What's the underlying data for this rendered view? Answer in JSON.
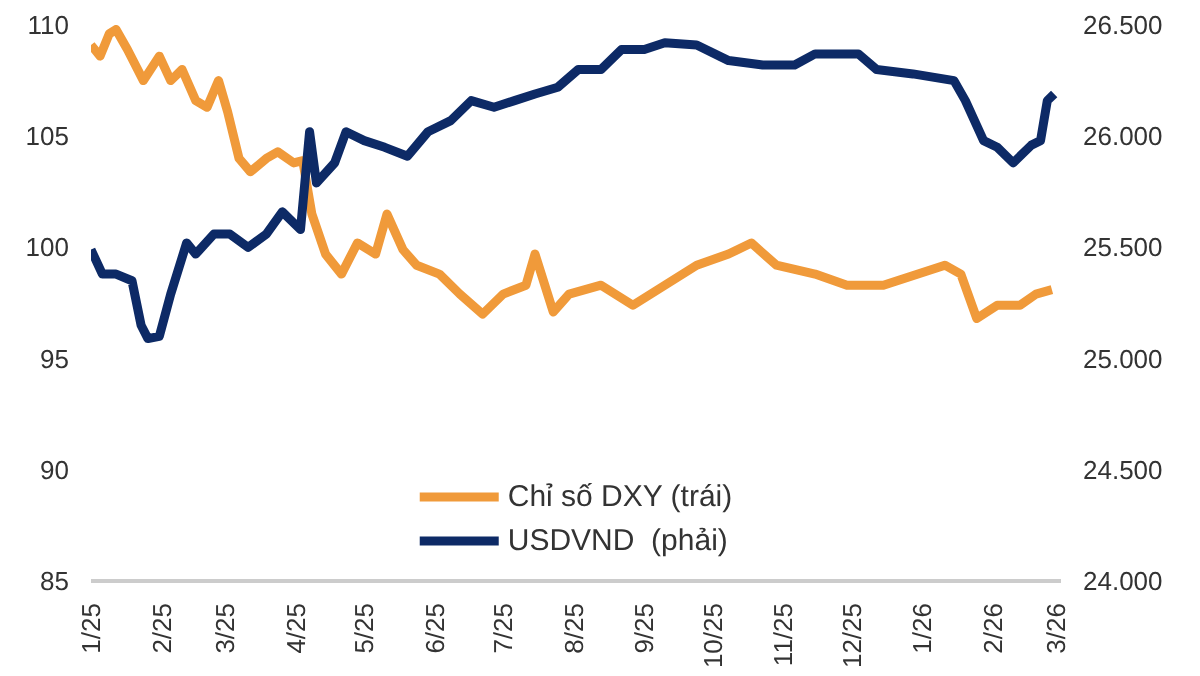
{
  "chart_data": {
    "type": "line",
    "xlim": [
      "2025-01-01",
      "2026-03-03"
    ],
    "xticks": [
      {
        "value": "2025-01-01",
        "label": "1/25"
      },
      {
        "value": "2025-02-01",
        "label": "2/25"
      },
      {
        "value": "2025-03-01",
        "label": "3/25"
      },
      {
        "value": "2025-04-01",
        "label": "4/25"
      },
      {
        "value": "2025-05-01",
        "label": "5/25"
      },
      {
        "value": "2025-06-01",
        "label": "6/25"
      },
      {
        "value": "2025-07-01",
        "label": "7/25"
      },
      {
        "value": "2025-08-01",
        "label": "8/25"
      },
      {
        "value": "2025-09-01",
        "label": "9/25"
      },
      {
        "value": "2025-10-01",
        "label": "10/25"
      },
      {
        "value": "2025-11-01",
        "label": "11/25"
      },
      {
        "value": "2025-12-01",
        "label": "12/25"
      },
      {
        "value": "2026-01-01",
        "label": "1/26"
      },
      {
        "value": "2026-02-01",
        "label": "2/26"
      },
      {
        "value": "2026-03-01",
        "label": "3/26"
      }
    ],
    "ylim": [
      85,
      110
    ],
    "yticks": [
      85,
      90,
      95,
      100,
      105,
      110
    ],
    "y2lim": [
      24000,
      26500
    ],
    "y2ticks": [
      {
        "value": 24000,
        "label": "24.000"
      },
      {
        "value": 24500,
        "label": "24.500"
      },
      {
        "value": 25000,
        "label": "25.000"
      },
      {
        "value": 25500,
        "label": "25.500"
      },
      {
        "value": 26000,
        "label": "26.000"
      },
      {
        "value": 26500,
        "label": "26.500"
      }
    ],
    "grid": false,
    "legend": "bottom",
    "marker": "none",
    "line_style": "solid",
    "series": [
      {
        "name": "Chỉ số DXY (trái)",
        "color": "#f09a3a",
        "x": [
          "2025-01-01",
          "2025-01-05",
          "2025-01-09",
          "2025-01-12",
          "2025-01-17",
          "2025-01-24",
          "2025-01-31",
          "2025-02-05",
          "2025-02-10",
          "2025-02-16",
          "2025-02-21",
          "2025-02-26",
          "2025-03-02",
          "2025-03-07",
          "2025-03-12",
          "2025-03-19",
          "2025-03-24",
          "2025-03-31",
          "2025-04-04",
          "2025-04-08",
          "2025-04-14",
          "2025-04-21",
          "2025-04-28",
          "2025-05-06",
          "2025-05-11",
          "2025-05-18",
          "2025-05-24",
          "2025-06-03",
          "2025-06-12",
          "2025-06-22",
          "2025-07-01",
          "2025-07-11",
          "2025-07-15",
          "2025-07-23",
          "2025-07-30",
          "2025-08-13",
          "2025-08-27",
          "2025-09-10",
          "2025-09-24",
          "2025-10-08",
          "2025-10-18",
          "2025-10-29",
          "2025-11-15",
          "2025-11-29",
          "2025-12-15",
          "2026-01-11",
          "2026-01-18",
          "2026-01-25",
          "2026-02-03",
          "2026-02-13",
          "2026-02-20",
          "2026-02-27"
        ],
        "values": [
          109.1,
          108.6,
          109.6,
          109.8,
          108.9,
          107.5,
          108.6,
          107.5,
          108.0,
          106.6,
          106.3,
          107.5,
          106.1,
          104.0,
          103.4,
          104.0,
          104.3,
          103.8,
          103.9,
          101.5,
          99.7,
          98.8,
          100.2,
          99.7,
          101.5,
          99.9,
          99.2,
          98.8,
          97.9,
          97.0,
          97.9,
          98.3,
          99.7,
          97.1,
          97.9,
          98.3,
          97.4,
          98.3,
          99.2,
          99.7,
          100.2,
          99.2,
          98.8,
          98.3,
          98.3,
          99.2,
          98.8,
          96.8,
          97.4,
          97.4,
          97.9,
          98.1
        ]
      },
      {
        "name": "USDVND  (phải)",
        "color": "#0d2a66",
        "axis": "y2",
        "x": [
          "2025-01-01",
          "2025-01-06",
          "2025-01-12",
          "2025-01-19",
          "2025-01-23",
          "2025-01-26",
          "2025-01-31",
          "2025-02-05",
          "2025-02-12",
          "2025-02-16",
          "2025-02-24",
          "2025-03-03",
          "2025-03-11",
          "2025-03-19",
          "2025-03-26",
          "2025-04-03",
          "2025-04-07",
          "2025-04-10",
          "2025-04-18",
          "2025-04-23",
          "2025-05-01",
          "2025-05-10",
          "2025-05-20",
          "2025-05-29",
          "2025-06-08",
          "2025-06-17",
          "2025-06-27",
          "2025-07-06",
          "2025-07-15",
          "2025-07-25",
          "2025-08-03",
          "2025-08-13",
          "2025-08-22",
          "2025-09-01",
          "2025-09-10",
          "2025-09-24",
          "2025-10-08",
          "2025-10-23",
          "2025-11-06",
          "2025-11-15",
          "2025-12-04",
          "2025-12-12",
          "2025-12-28",
          "2026-01-15",
          "2026-01-20",
          "2026-01-28",
          "2026-02-03",
          "2026-02-10",
          "2026-02-18",
          "2026-02-22",
          "2026-02-25",
          "2026-02-28"
        ],
        "values": [
          25490,
          25380,
          25380,
          25350,
          25150,
          25090,
          25100,
          25290,
          25520,
          25470,
          25560,
          25560,
          25500,
          25560,
          25660,
          25580,
          26020,
          25790,
          25880,
          26020,
          25980,
          25950,
          25910,
          26020,
          26070,
          26160,
          26130,
          26160,
          26190,
          26220,
          26300,
          26300,
          26390,
          26390,
          26420,
          26410,
          26340,
          26320,
          26320,
          26370,
          26370,
          26300,
          26280,
          26250,
          26160,
          25980,
          25950,
          25880,
          25960,
          25980,
          26160,
          26190
        ]
      }
    ]
  }
}
